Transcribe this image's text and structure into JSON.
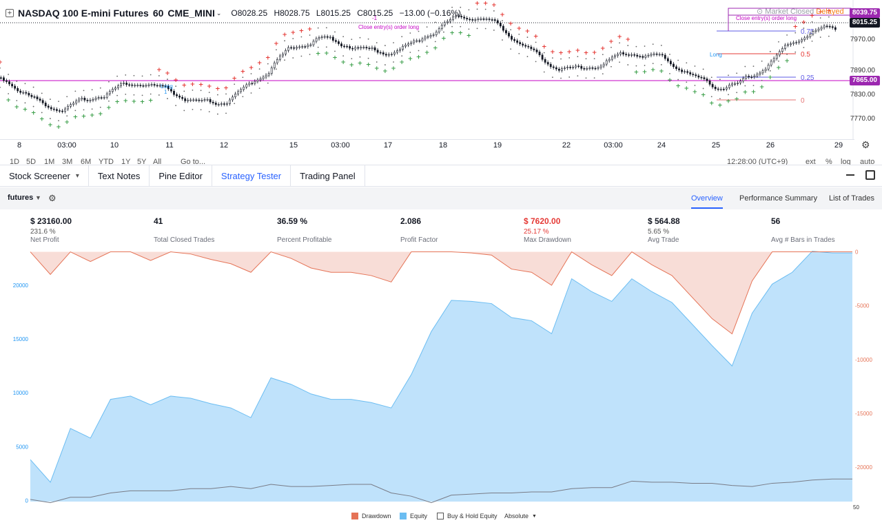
{
  "symbol": {
    "name": "NASDAQ 100 E-mini Futures",
    "interval": "60",
    "exchange": "CME_MINI",
    "open": "O8028.25",
    "high": "H8028.75",
    "low": "L8015.25",
    "close": "C8015.25",
    "change": "−13.00 (−0.16%)",
    "market_status": "Market Closed",
    "data_status": "Delayed"
  },
  "price_axis": {
    "last_price": "8015.25",
    "high_tag": "8039.75",
    "line_tag": "7865.00",
    "ticks": [
      "7970.00",
      "7890.00",
      "7830.00",
      "7770.00"
    ],
    "tag_colors": {
      "high": "#9c27b0",
      "last": "#131722",
      "line": "#9c27b0"
    }
  },
  "fib_levels": [
    "0.75",
    "0.5",
    "0.25",
    "0"
  ],
  "signals": [
    "Close entry(s) order long",
    "Close entry(s) order long",
    "Long",
    "Long",
    "-1",
    "1"
  ],
  "time_axis": [
    "8",
    "03:00",
    "10",
    "11",
    "12",
    "15",
    "03:00",
    "17",
    "18",
    "19",
    "22",
    "03:00",
    "24",
    "25",
    "26",
    "29"
  ],
  "timeframes": [
    "1D",
    "5D",
    "1M",
    "3M",
    "6M",
    "YTD",
    "1Y",
    "5Y",
    "All",
    "Go to...",
    "12:28:00 (UTC+9)",
    "ext",
    "%",
    "log",
    "auto"
  ],
  "tabs": [
    {
      "label": "Stock Screener",
      "has_menu": true
    },
    {
      "label": "Text Notes"
    },
    {
      "label": "Pine Editor"
    },
    {
      "label": "Strategy Tester",
      "active": true
    },
    {
      "label": "Trading Panel"
    }
  ],
  "strategy": {
    "name": "futures"
  },
  "report_tabs": [
    {
      "label": "Overview",
      "active": true
    },
    {
      "label": "Performance Summary"
    },
    {
      "label": "List of Trades"
    }
  ],
  "stats": [
    {
      "value": "$ 23160.00",
      "pct": "231.6 %",
      "label": "Net Profit"
    },
    {
      "value": "41",
      "pct": "",
      "label": "Total Closed Trades"
    },
    {
      "value": "36.59 %",
      "pct": "",
      "label": "Percent Profitable"
    },
    {
      "value": "2.086",
      "pct": "",
      "label": "Profit Factor"
    },
    {
      "value": "$ 7620.00",
      "pct": "25.17 %",
      "label": "Max Drawdown",
      "negative": true
    },
    {
      "value": "$ 564.88",
      "pct": "5.65 %",
      "label": "Avg Trade"
    },
    {
      "value": "56",
      "pct": "",
      "label": "Avg # Bars in Trades"
    }
  ],
  "chart_data": {
    "type": "area",
    "x": [
      0,
      1,
      2,
      3,
      4,
      5,
      6,
      7,
      8,
      9,
      10,
      11,
      12,
      13,
      14,
      15,
      16,
      17,
      18,
      19,
      20,
      21,
      22,
      23,
      24,
      25,
      26,
      27,
      28,
      29,
      30,
      31,
      32,
      33,
      34,
      35,
      36,
      37,
      38,
      39,
      40,
      41
    ],
    "series": [
      {
        "name": "Equity",
        "values": [
          3800,
          1700,
          6700,
          5800,
          9400,
          9700,
          8900,
          9700,
          9500,
          9000,
          8600,
          7700,
          11400,
          10800,
          9900,
          9400,
          9400,
          9100,
          8600,
          11700,
          15700,
          18600,
          18500,
          18300,
          17000,
          16700,
          15500,
          20600,
          19400,
          18500,
          20600,
          19400,
          18400,
          16400,
          14400,
          12500,
          17400,
          20100,
          21200,
          23160,
          23000,
          23000
        ]
      },
      {
        "name": "Drawdown",
        "values": [
          0,
          -2100,
          0,
          -900,
          0,
          0,
          -800,
          0,
          -200,
          -700,
          -1100,
          -1900,
          0,
          -600,
          -1500,
          -1900,
          -1900,
          -2200,
          -2800,
          0,
          0,
          0,
          -100,
          -300,
          -1600,
          -1900,
          -3100,
          0,
          -1200,
          -2200,
          0,
          -1200,
          -2200,
          -4200,
          -6200,
          -7620,
          -2700,
          0,
          0,
          0,
          0,
          0
        ]
      },
      {
        "name": "Buy & Hold Equity",
        "values": [
          100,
          -200,
          300,
          300,
          700,
          900,
          900,
          900,
          1100,
          1100,
          1300,
          1100,
          1500,
          1300,
          1300,
          1400,
          1500,
          1500,
          700,
          400,
          -200,
          500,
          600,
          700,
          700,
          800,
          800,
          1100,
          1200,
          1200,
          1800,
          1700,
          1700,
          1600,
          1600,
          1400,
          1300,
          1600,
          1700,
          1900,
          2000,
          2000
        ]
      }
    ],
    "left_axis": {
      "ticks": [
        0,
        5000,
        10000,
        15000,
        20000
      ],
      "range": [
        -100,
        23200
      ]
    },
    "right_axis": {
      "ticks": [
        0,
        -5000,
        -10000,
        -15000,
        -20000
      ],
      "range": [
        -23200,
        100
      ]
    },
    "x_label": "50",
    "legend": [
      "Drawdown",
      "Equity",
      "Buy & Hold Equity",
      "Absolute"
    ],
    "colors": {
      "equity_fill": "#bfe2fb",
      "equity_line": "#6bbdf2",
      "drawdown_fill": "#f8ddd7",
      "drawdown_line": "#e57356",
      "bh_line": "#787b86",
      "left_axis": "#2196f3",
      "right_axis": "#e57356"
    }
  }
}
